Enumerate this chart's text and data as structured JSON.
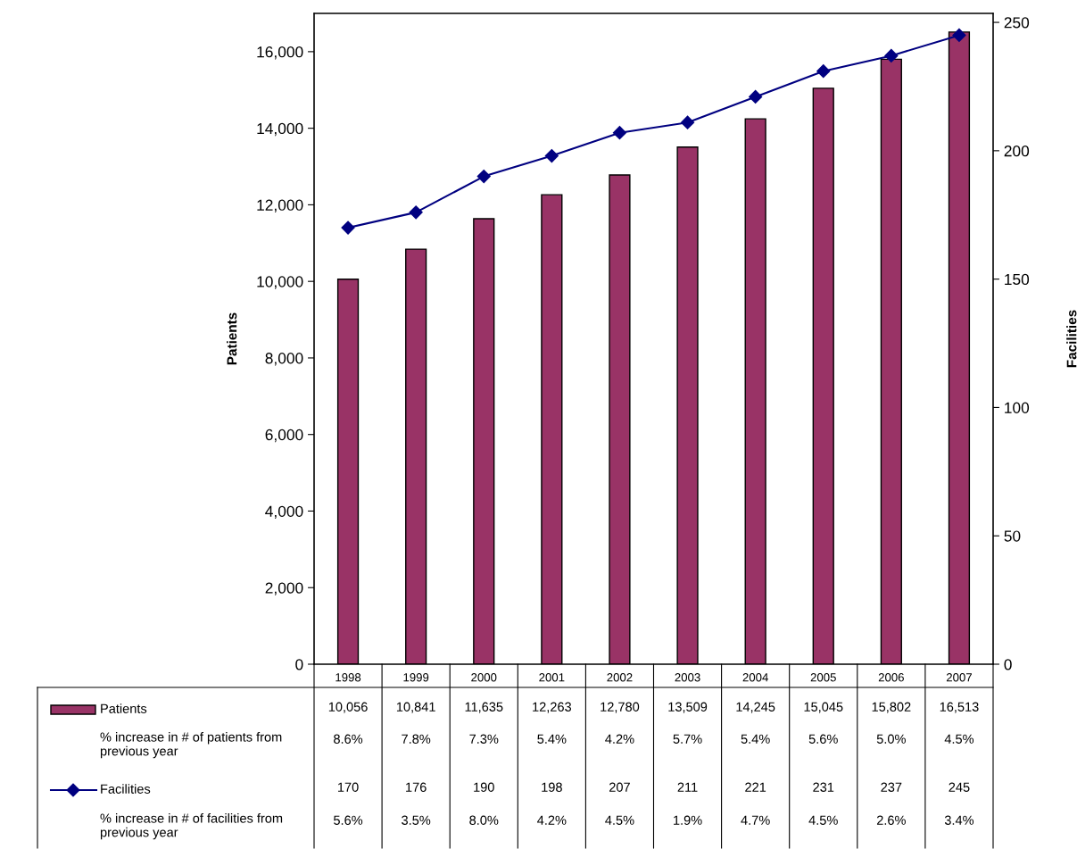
{
  "chart_data": {
    "type": "bar",
    "ylabel": "Patients",
    "y2label": "Facilities",
    "categories": [
      "1998",
      "1999",
      "2000",
      "2001",
      "2002",
      "2003",
      "2004",
      "2005",
      "2006",
      "2007"
    ],
    "series": [
      {
        "name": "Patients",
        "color": "#993366",
        "values": [
          10056,
          10841,
          11635,
          12263,
          12780,
          13509,
          14245,
          15045,
          15802,
          16513
        ],
        "value_labels": [
          "10,056",
          "10,841",
          "11,635",
          "12,263",
          "12,780",
          "13,509",
          "14,245",
          "15,045",
          "15,802",
          "16,513"
        ]
      },
      {
        "name": "Facilities",
        "type": "line",
        "axis": "y2",
        "color": "#000080",
        "marker": "diamond",
        "values": [
          170,
          176,
          190,
          198,
          207,
          211,
          221,
          231,
          237,
          245
        ]
      }
    ],
    "ylim": [
      0,
      17000
    ],
    "yticks": [
      {
        "value": 0,
        "label": "0"
      },
      {
        "value": 2000,
        "label": "2,000"
      },
      {
        "value": 4000,
        "label": "4,000"
      },
      {
        "value": 6000,
        "label": "6,000"
      },
      {
        "value": 8000,
        "label": "8,000"
      },
      {
        "value": 10000,
        "label": "10,000"
      },
      {
        "value": 12000,
        "label": "12,000"
      },
      {
        "value": 14000,
        "label": "14,000"
      },
      {
        "value": 16000,
        "label": "16,000"
      }
    ],
    "y2lim": [
      0,
      253.5
    ],
    "y2ticks": [
      0,
      50,
      100,
      150,
      200,
      250
    ],
    "grid": false,
    "legend": "bottom left",
    "data_labels": true,
    "annotations": [
      "% increase in # of patients from previous year",
      "8.6%",
      "7.8%",
      "7.3%",
      "5.4%",
      "4.2%",
      "5.7%",
      "5.4%",
      "5.6%",
      "5.0%",
      "4.5%",
      "% increase in # of facilities from previous year",
      "5.6%",
      "3.5%",
      "8.0%",
      "4.2%",
      "4.5%",
      "1.9%",
      "4.7%",
      "4.5%",
      "2.6%",
      "3.4%"
    ]
  }
}
